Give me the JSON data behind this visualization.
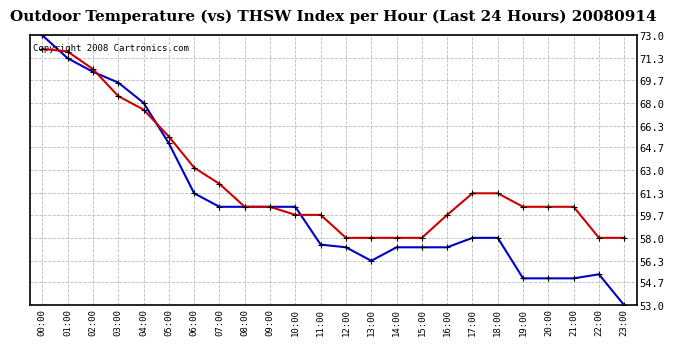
{
  "title": "Outdoor Temperature (vs) THSW Index per Hour (Last 24 Hours) 20080914",
  "copyright_text": "Copyright 2008 Cartronics.com",
  "hours": [
    0,
    1,
    2,
    3,
    4,
    5,
    6,
    7,
    8,
    9,
    10,
    11,
    12,
    13,
    14,
    15,
    16,
    17,
    18,
    19,
    20,
    21,
    22,
    23
  ],
  "hour_labels": [
    "00:00",
    "01:00",
    "02:00",
    "03:00",
    "04:00",
    "05:00",
    "06:00",
    "07:00",
    "08:00",
    "09:00",
    "10:00",
    "11:00",
    "12:00",
    "13:00",
    "14:00",
    "15:00",
    "16:00",
    "17:00",
    "18:00",
    "19:00",
    "20:00",
    "21:00",
    "22:00",
    "23:00"
  ],
  "temp_red": [
    72.0,
    71.8,
    70.5,
    68.5,
    67.5,
    65.5,
    63.2,
    62.0,
    60.3,
    60.3,
    59.7,
    59.7,
    58.0,
    58.0,
    58.0,
    58.0,
    59.7,
    61.3,
    61.3,
    60.3,
    60.3,
    60.3,
    58.0,
    58.0
  ],
  "thsw_blue": [
    73.0,
    71.3,
    70.3,
    69.5,
    68.0,
    65.0,
    61.3,
    60.3,
    60.3,
    60.3,
    60.3,
    57.5,
    57.3,
    56.3,
    57.3,
    57.3,
    57.3,
    58.0,
    58.0,
    55.0,
    55.0,
    55.0,
    55.3,
    53.0
  ],
  "ylim_min": 53.0,
  "ylim_max": 73.0,
  "yticks": [
    53.0,
    54.7,
    56.3,
    58.0,
    59.7,
    61.3,
    63.0,
    64.7,
    66.3,
    68.0,
    69.7,
    71.3,
    73.0
  ],
  "bg_color": "#ffffff",
  "plot_bg_color": "#ffffff",
  "grid_color": "#bbbbbb",
  "red_color": "#cc0000",
  "blue_color": "#0000cc",
  "title_fontsize": 11,
  "copyright_fontsize": 6.5
}
